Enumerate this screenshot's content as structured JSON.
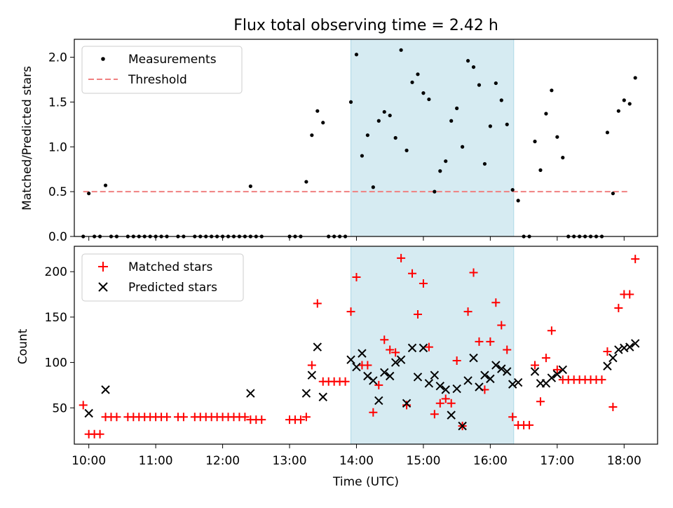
{
  "figure": {
    "title": "Flux total observing time = 2.42 h"
  },
  "chart_data": [
    {
      "type": "scatter",
      "ylabel": "Matched/Predicted stars",
      "xlabel": "",
      "xlim": [
        "09:47",
        "18:30"
      ],
      "ylim": [
        0,
        2.2
      ],
      "yticks": [
        "0.0",
        "0.5",
        "1.0",
        "1.5",
        "2.0"
      ],
      "shaded_interval": [
        "13:55",
        "16:21"
      ],
      "shade_color": "#add8e6",
      "legend": {
        "placement": "top-left",
        "entries": [
          "Measurements",
          "Threshold"
        ]
      },
      "threshold": {
        "value": 0.5,
        "x_range": [
          "09:55",
          "18:05"
        ],
        "color": "#f08080",
        "style": "dashed"
      },
      "series": [
        {
          "name": "Measurements",
          "color": "#000000",
          "marker": "dot",
          "points": [
            [
              "09:55",
              0
            ],
            [
              "10:00",
              0.48
            ],
            [
              "10:05",
              0
            ],
            [
              "10:10",
              0
            ],
            [
              "10:15",
              0.57
            ],
            [
              "10:20",
              0
            ],
            [
              "10:25",
              0
            ],
            [
              "10:35",
              0
            ],
            [
              "10:40",
              0
            ],
            [
              "10:45",
              0
            ],
            [
              "10:50",
              0
            ],
            [
              "10:55",
              0
            ],
            [
              "11:00",
              0
            ],
            [
              "11:05",
              0
            ],
            [
              "11:10",
              0
            ],
            [
              "11:20",
              0
            ],
            [
              "11:25",
              0
            ],
            [
              "11:35",
              0
            ],
            [
              "11:40",
              0
            ],
            [
              "11:45",
              0
            ],
            [
              "11:50",
              0
            ],
            [
              "11:55",
              0
            ],
            [
              "12:00",
              0
            ],
            [
              "12:05",
              0
            ],
            [
              "12:10",
              0
            ],
            [
              "12:15",
              0
            ],
            [
              "12:20",
              0
            ],
            [
              "12:25",
              0
            ],
            [
              "12:25",
              0.56
            ],
            [
              "12:30",
              0
            ],
            [
              "12:35",
              0
            ],
            [
              "13:00",
              0
            ],
            [
              "13:05",
              0
            ],
            [
              "13:10",
              0
            ],
            [
              "13:15",
              0.61
            ],
            [
              "13:20",
              1.13
            ],
            [
              "13:25",
              1.4
            ],
            [
              "13:30",
              1.27
            ],
            [
              "13:35",
              0
            ],
            [
              "13:40",
              0
            ],
            [
              "13:45",
              0
            ],
            [
              "13:50",
              0
            ],
            [
              "13:55",
              1.5
            ],
            [
              "14:00",
              2.03
            ],
            [
              "14:05",
              0.9
            ],
            [
              "14:10",
              1.13
            ],
            [
              "14:15",
              0.55
            ],
            [
              "14:20",
              1.29
            ],
            [
              "14:25",
              1.39
            ],
            [
              "14:30",
              1.35
            ],
            [
              "14:35",
              1.1
            ],
            [
              "14:40",
              2.08
            ],
            [
              "14:45",
              0.96
            ],
            [
              "14:50",
              1.72
            ],
            [
              "14:55",
              1.81
            ],
            [
              "15:00",
              1.6
            ],
            [
              "15:05",
              1.53
            ],
            [
              "15:10",
              0.5
            ],
            [
              "15:15",
              0.73
            ],
            [
              "15:20",
              0.84
            ],
            [
              "15:25",
              1.29
            ],
            [
              "15:30",
              1.43
            ],
            [
              "15:35",
              1.0
            ],
            [
              "15:40",
              1.96
            ],
            [
              "15:45",
              1.89
            ],
            [
              "15:50",
              1.69
            ],
            [
              "15:55",
              0.81
            ],
            [
              "16:00",
              1.23
            ],
            [
              "16:05",
              1.71
            ],
            [
              "16:10",
              1.52
            ],
            [
              "16:15",
              1.25
            ],
            [
              "16:20",
              0.52
            ],
            [
              "16:25",
              0.4
            ],
            [
              "16:30",
              0
            ],
            [
              "16:35",
              0
            ],
            [
              "16:40",
              1.06
            ],
            [
              "16:45",
              0.74
            ],
            [
              "16:50",
              1.37
            ],
            [
              "16:55",
              1.63
            ],
            [
              "17:00",
              1.11
            ],
            [
              "17:05",
              0.88
            ],
            [
              "17:10",
              0
            ],
            [
              "17:15",
              0
            ],
            [
              "17:20",
              0
            ],
            [
              "17:25",
              0
            ],
            [
              "17:30",
              0
            ],
            [
              "17:35",
              0
            ],
            [
              "17:40",
              0
            ],
            [
              "17:45",
              1.16
            ],
            [
              "17:50",
              0.48
            ],
            [
              "17:55",
              1.4
            ],
            [
              "18:00",
              1.52
            ],
            [
              "18:05",
              1.48
            ],
            [
              "18:10",
              1.77
            ]
          ]
        }
      ]
    },
    {
      "type": "scatter",
      "ylabel": "Count",
      "xlabel": "Time (UTC)",
      "xlim": [
        "09:47",
        "18:30"
      ],
      "ylim": [
        10,
        228
      ],
      "yticks": [
        "50",
        "100",
        "150",
        "200"
      ],
      "xticks": [
        "10:00",
        "11:00",
        "12:00",
        "13:00",
        "14:00",
        "15:00",
        "16:00",
        "17:00",
        "18:00"
      ],
      "shaded_interval": [
        "13:55",
        "16:21"
      ],
      "shade_color": "#add8e6",
      "legend": {
        "placement": "top-left",
        "entries": [
          "Matched stars",
          "Predicted stars"
        ]
      },
      "series": [
        {
          "name": "Matched stars",
          "color": "#ff0000",
          "marker": "plus",
          "points": [
            [
              "09:55",
              53
            ],
            [
              "10:00",
              21
            ],
            [
              "10:05",
              21
            ],
            [
              "10:10",
              21
            ],
            [
              "10:15",
              40
            ],
            [
              "10:20",
              40
            ],
            [
              "10:25",
              40
            ],
            [
              "10:35",
              40
            ],
            [
              "10:40",
              40
            ],
            [
              "10:45",
              40
            ],
            [
              "10:50",
              40
            ],
            [
              "10:55",
              40
            ],
            [
              "11:00",
              40
            ],
            [
              "11:05",
              40
            ],
            [
              "11:10",
              40
            ],
            [
              "11:20",
              40
            ],
            [
              "11:25",
              40
            ],
            [
              "11:35",
              40
            ],
            [
              "11:40",
              40
            ],
            [
              "11:45",
              40
            ],
            [
              "11:50",
              40
            ],
            [
              "11:55",
              40
            ],
            [
              "12:00",
              40
            ],
            [
              "12:05",
              40
            ],
            [
              "12:10",
              40
            ],
            [
              "12:15",
              40
            ],
            [
              "12:20",
              40
            ],
            [
              "12:25",
              37
            ],
            [
              "12:30",
              37
            ],
            [
              "12:35",
              37
            ],
            [
              "13:00",
              37
            ],
            [
              "13:05",
              37
            ],
            [
              "13:10",
              37
            ],
            [
              "13:15",
              40
            ],
            [
              "13:20",
              97
            ],
            [
              "13:25",
              165
            ],
            [
              "13:30",
              79
            ],
            [
              "13:35",
              79
            ],
            [
              "13:40",
              79
            ],
            [
              "13:45",
              79
            ],
            [
              "13:50",
              79
            ],
            [
              "13:55",
              156
            ],
            [
              "14:00",
              194
            ],
            [
              "14:05",
              97
            ],
            [
              "14:10",
              97
            ],
            [
              "14:15",
              45
            ],
            [
              "14:20",
              75
            ],
            [
              "14:25",
              125
            ],
            [
              "14:30",
              114
            ],
            [
              "14:35",
              111
            ],
            [
              "14:40",
              215
            ],
            [
              "14:45",
              53
            ],
            [
              "14:50",
              198
            ],
            [
              "14:55",
              153
            ],
            [
              "15:00",
              187
            ],
            [
              "15:05",
              117
            ],
            [
              "15:10",
              43
            ],
            [
              "15:15",
              55
            ],
            [
              "15:20",
              60
            ],
            [
              "15:25",
              55
            ],
            [
              "15:30",
              102
            ],
            [
              "15:35",
              30
            ],
            [
              "15:40",
              156
            ],
            [
              "15:45",
              199
            ],
            [
              "15:50",
              123
            ],
            [
              "15:55",
              70
            ],
            [
              "16:00",
              123
            ],
            [
              "16:05",
              166
            ],
            [
              "16:10",
              141
            ],
            [
              "16:15",
              114
            ],
            [
              "16:20",
              40
            ],
            [
              "16:25",
              31
            ],
            [
              "16:30",
              31
            ],
            [
              "16:35",
              31
            ],
            [
              "16:40",
              97
            ],
            [
              "16:45",
              57
            ],
            [
              "16:50",
              105
            ],
            [
              "16:55",
              135
            ],
            [
              "17:00",
              92
            ],
            [
              "17:05",
              81
            ],
            [
              "17:10",
              81
            ],
            [
              "17:15",
              81
            ],
            [
              "17:20",
              81
            ],
            [
              "17:25",
              81
            ],
            [
              "17:30",
              81
            ],
            [
              "17:35",
              81
            ],
            [
              "17:40",
              81
            ],
            [
              "17:45",
              112
            ],
            [
              "17:50",
              51
            ],
            [
              "17:55",
              160
            ],
            [
              "18:00",
              175
            ],
            [
              "18:05",
              175
            ],
            [
              "18:10",
              214
            ]
          ]
        },
        {
          "name": "Predicted stars",
          "color": "#000000",
          "marker": "x",
          "points": [
            [
              "10:00",
              44
            ],
            [
              "10:15",
              70
            ],
            [
              "12:25",
              66
            ],
            [
              "13:15",
              66
            ],
            [
              "13:20",
              86
            ],
            [
              "13:25",
              117
            ],
            [
              "13:30",
              62
            ],
            [
              "13:55",
              103
            ],
            [
              "14:00",
              95
            ],
            [
              "14:05",
              110
            ],
            [
              "14:10",
              85
            ],
            [
              "14:15",
              80
            ],
            [
              "14:20",
              58
            ],
            [
              "14:25",
              89
            ],
            [
              "14:30",
              85
            ],
            [
              "14:35",
              100
            ],
            [
              "14:40",
              103
            ],
            [
              "14:45",
              55
            ],
            [
              "14:50",
              116
            ],
            [
              "14:55",
              84
            ],
            [
              "15:00",
              116
            ],
            [
              "15:05",
              77
            ],
            [
              "15:10",
              86
            ],
            [
              "15:15",
              74
            ],
            [
              "15:20",
              70
            ],
            [
              "15:25",
              42
            ],
            [
              "15:30",
              71
            ],
            [
              "15:35",
              30
            ],
            [
              "15:40",
              80
            ],
            [
              "15:45",
              105
            ],
            [
              "15:50",
              73
            ],
            [
              "15:55",
              86
            ],
            [
              "16:00",
              82
            ],
            [
              "16:05",
              97
            ],
            [
              "16:10",
              93
            ],
            [
              "16:15",
              90
            ],
            [
              "16:20",
              76
            ],
            [
              "16:25",
              78
            ],
            [
              "16:40",
              90
            ],
            [
              "16:45",
              77
            ],
            [
              "16:50",
              77
            ],
            [
              "16:55",
              83
            ],
            [
              "17:00",
              87
            ],
            [
              "17:05",
              92
            ],
            [
              "17:45",
              96
            ],
            [
              "17:50",
              105
            ],
            [
              "17:55",
              114
            ],
            [
              "18:00",
              116
            ],
            [
              "18:05",
              117
            ],
            [
              "18:10",
              121
            ]
          ]
        }
      ]
    }
  ]
}
